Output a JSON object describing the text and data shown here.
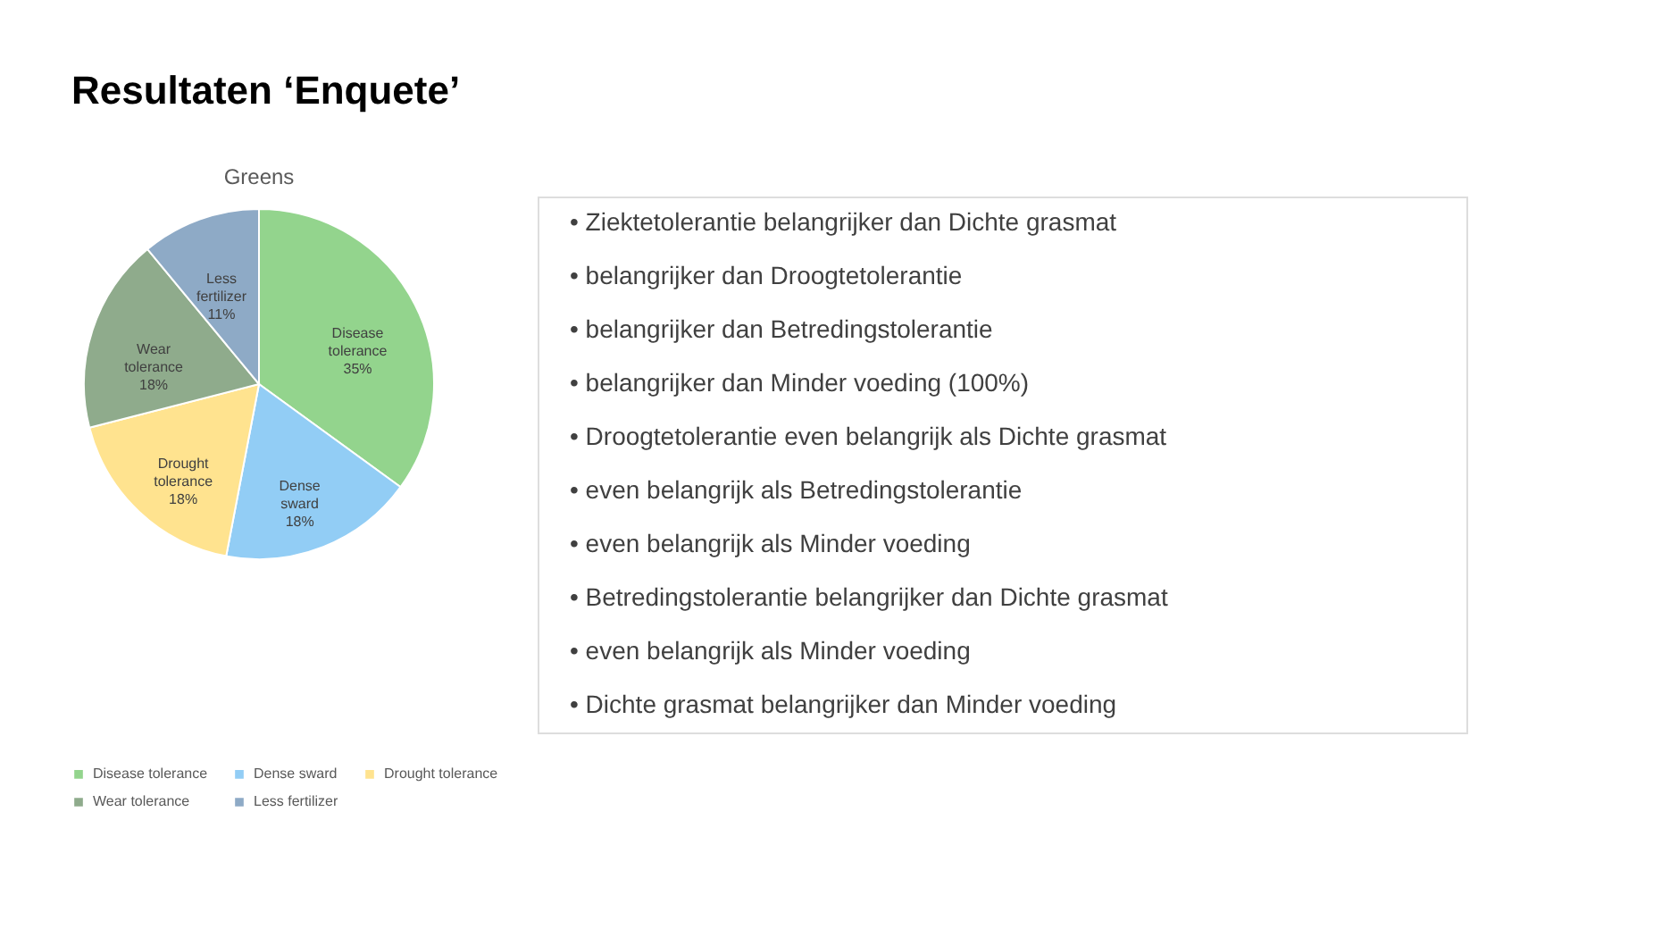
{
  "chart_data": {
    "type": "pie",
    "title": "Greens",
    "categories": [
      "Disease tolerance",
      "Dense sward",
      "Drought tolerance",
      "Wear tolerance",
      "Less fertilizer"
    ],
    "values": [
      35,
      18,
      18,
      18,
      11
    ],
    "value_labels": [
      "35%",
      "18%",
      "18%",
      "18%",
      "11%"
    ],
    "colors": [
      "#93d48d",
      "#92cdf5",
      "#ffe38f",
      "#8fab8c",
      "#8eaac6"
    ],
    "legend": "bottom",
    "annotations": [
      "Resultaten ‘Enquete’",
      "• Ziektetolerantie belangrijker dan Dichte grasmat",
      "• belangrijker dan Droogtetolerantie",
      "• belangrijker dan Betredingstolerantie",
      "• belangrijker dan Minder voeding (100%)",
      "• Droogtetolerantie even belangrijk als Dichte grasmat",
      "• even belangrijk als Betredingstolerantie",
      "• even belangrijk als Minder voeding",
      "• Betredingstolerantie belangrijker dan Dichte grasmat",
      "• even belangrijk als Minder voeding",
      "• Dichte grasmat belangrijker dan Minder voeding"
    ]
  }
}
